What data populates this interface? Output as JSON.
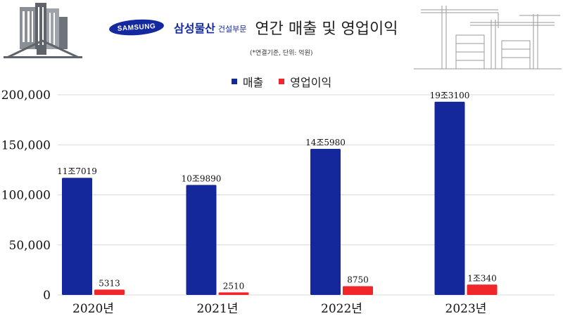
{
  "header": {
    "logo_text": "SAMSUNG",
    "company": "삼성물산",
    "division": "건설부문",
    "title": "연간 매출 및 영업이익",
    "note": "(*연결기준, 단위: 억원)"
  },
  "colors": {
    "revenue": "#14279b",
    "operating_profit": "#f0262b",
    "grid": "#d9d9d9"
  },
  "chart_data": {
    "type": "bar",
    "categories": [
      "2020년",
      "2021년",
      "2022년",
      "2023년"
    ],
    "series": [
      {
        "name": "매출",
        "values": [
          117019,
          109890,
          145980,
          193100
        ],
        "labels": [
          "11조7019",
          "10조9890",
          "14조5980",
          "19조3100"
        ]
      },
      {
        "name": "영업이익",
        "values": [
          5313,
          2510,
          8750,
          10340
        ],
        "labels": [
          "5313",
          "2510",
          "8750",
          "1조340"
        ]
      }
    ],
    "ylim": [
      0,
      200000
    ],
    "yticks": [
      0,
      50000,
      100000,
      150000,
      200000
    ],
    "ytick_labels": [
      "0",
      "50,000",
      "100,000",
      "150,000",
      "200,000"
    ],
    "grid": true,
    "legend_position": "top-center"
  }
}
